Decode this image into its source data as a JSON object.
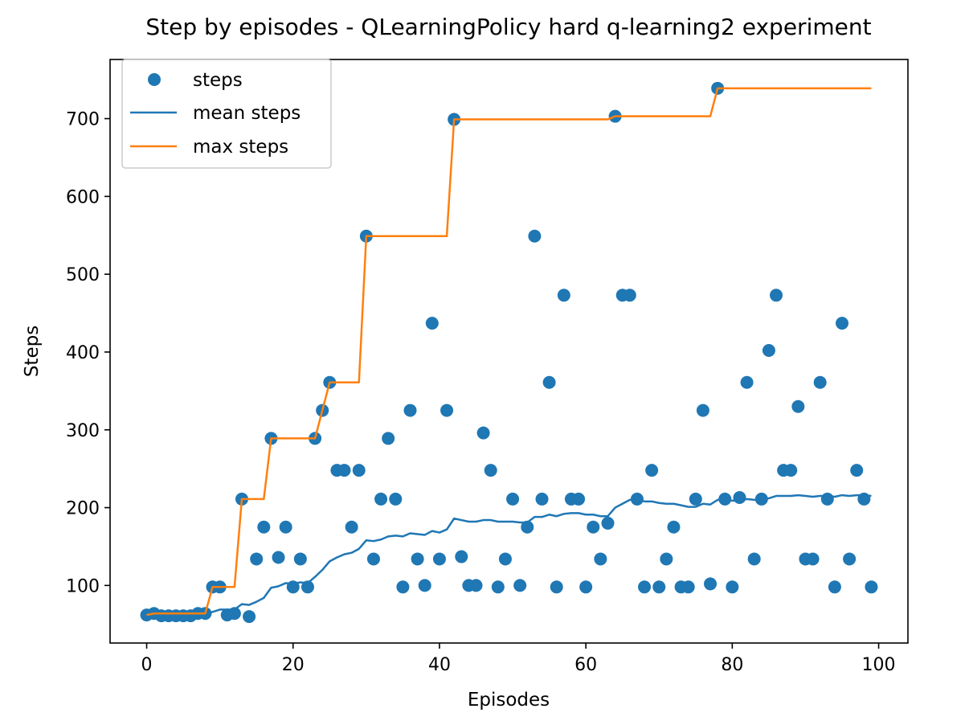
{
  "chart_data": {
    "type": "scatter",
    "title": "Step by episodes - QLearningPolicy hard q-learning2 experiment",
    "xlabel": "Episodes",
    "ylabel": "Steps",
    "xlim": [
      -5,
      104
    ],
    "ylim": [
      26,
      776
    ],
    "xticks": [
      0,
      20,
      40,
      60,
      80,
      100
    ],
    "yticks": [
      100,
      200,
      300,
      400,
      500,
      600,
      700
    ],
    "legend_position": "upper left",
    "colors": {
      "steps": "#1f77b4",
      "mean": "#1f77b4",
      "max": "#ff7f0e"
    },
    "legend": [
      "steps",
      "mean steps",
      "max steps"
    ],
    "series": [
      {
        "name": "steps",
        "kind": "scatter",
        "x": [
          0,
          1,
          2,
          3,
          4,
          5,
          6,
          7,
          8,
          9,
          10,
          11,
          12,
          13,
          14,
          15,
          16,
          17,
          18,
          19,
          20,
          21,
          22,
          23,
          24,
          25,
          26,
          27,
          28,
          29,
          30,
          31,
          32,
          33,
          34,
          35,
          36,
          37,
          38,
          39,
          40,
          41,
          42,
          43,
          44,
          45,
          46,
          47,
          48,
          49,
          50,
          51,
          52,
          53,
          54,
          55,
          56,
          57,
          58,
          59,
          60,
          61,
          62,
          63,
          64,
          65,
          66,
          67,
          68,
          69,
          70,
          71,
          72,
          73,
          74,
          75,
          76,
          77,
          78,
          79,
          80,
          81,
          82,
          83,
          84,
          85,
          86,
          87,
          88,
          89,
          90,
          91,
          92,
          93,
          94,
          95,
          96,
          97,
          98,
          99
        ],
        "y": [
          62,
          64,
          61,
          61,
          61,
          61,
          61,
          64,
          64,
          98,
          98,
          62,
          64,
          211,
          60,
          134,
          175,
          289,
          136,
          175,
          98,
          134,
          98,
          289,
          325,
          361,
          248,
          248,
          175,
          248,
          549,
          134,
          211,
          289,
          211,
          98,
          325,
          134,
          100,
          437,
          134,
          325,
          699,
          137,
          100,
          100,
          296,
          248,
          98,
          134,
          211,
          100,
          175,
          549,
          211,
          361,
          98,
          473,
          211,
          211,
          98,
          175,
          134,
          180,
          703,
          473,
          473,
          211,
          98,
          248,
          98,
          134,
          175,
          98,
          98,
          211,
          325,
          102,
          739,
          211,
          98,
          213,
          361,
          134,
          211,
          402,
          473,
          248,
          248,
          330,
          134,
          134,
          361,
          211,
          98,
          437,
          134,
          248,
          211,
          98
        ]
      },
      {
        "name": "mean steps",
        "kind": "line",
        "x": [
          0,
          1,
          2,
          3,
          4,
          5,
          6,
          7,
          8,
          9,
          10,
          11,
          12,
          13,
          14,
          15,
          16,
          17,
          18,
          19,
          20,
          21,
          22,
          23,
          24,
          25,
          26,
          27,
          28,
          29,
          30,
          31,
          32,
          33,
          34,
          35,
          36,
          37,
          38,
          39,
          40,
          41,
          42,
          43,
          44,
          45,
          46,
          47,
          48,
          49,
          50,
          51,
          52,
          53,
          54,
          55,
          56,
          57,
          58,
          59,
          60,
          61,
          62,
          63,
          64,
          65,
          66,
          67,
          68,
          69,
          70,
          71,
          72,
          73,
          74,
          75,
          76,
          77,
          78,
          79,
          80,
          81,
          82,
          83,
          84,
          85,
          86,
          87,
          88,
          89,
          90,
          91,
          92,
          93,
          94,
          95,
          96,
          97,
          98,
          99
        ],
        "y": [
          62,
          63,
          62,
          62,
          62,
          62,
          62,
          62,
          62,
          66,
          69,
          69,
          69,
          76,
          75,
          79,
          84,
          97,
          99,
          103,
          102,
          104,
          103,
          111,
          120,
          131,
          136,
          140,
          142,
          147,
          158,
          157,
          159,
          163,
          164,
          163,
          167,
          166,
          165,
          170,
          168,
          172,
          186,
          184,
          182,
          182,
          184,
          184,
          182,
          182,
          182,
          181,
          181,
          188,
          188,
          191,
          189,
          192,
          193,
          193,
          191,
          191,
          189,
          189,
          200,
          205,
          210,
          210,
          208,
          208,
          206,
          205,
          205,
          203,
          201,
          201,
          205,
          204,
          210,
          210,
          209,
          209,
          211,
          210,
          210,
          212,
          215,
          215,
          215,
          216,
          215,
          214,
          215,
          215,
          214,
          216,
          215,
          216,
          216,
          215
        ]
      },
      {
        "name": "max steps",
        "kind": "line",
        "x": [
          0,
          1,
          2,
          3,
          4,
          5,
          6,
          7,
          8,
          9,
          10,
          11,
          12,
          13,
          14,
          15,
          16,
          17,
          18,
          19,
          20,
          21,
          22,
          23,
          24,
          25,
          26,
          27,
          28,
          29,
          30,
          31,
          32,
          33,
          34,
          35,
          36,
          37,
          38,
          39,
          40,
          41,
          42,
          43,
          44,
          45,
          46,
          47,
          48,
          49,
          50,
          51,
          52,
          53,
          54,
          55,
          56,
          57,
          58,
          59,
          60,
          61,
          62,
          63,
          64,
          65,
          66,
          67,
          68,
          69,
          70,
          71,
          72,
          73,
          74,
          75,
          76,
          77,
          78,
          79,
          80,
          81,
          82,
          83,
          84,
          85,
          86,
          87,
          88,
          89,
          90,
          91,
          92,
          93,
          94,
          95,
          96,
          97,
          98,
          99
        ],
        "y": [
          62,
          64,
          64,
          64,
          64,
          64,
          64,
          64,
          64,
          98,
          98,
          98,
          98,
          211,
          211,
          211,
          211,
          289,
          289,
          289,
          289,
          289,
          289,
          289,
          325,
          361,
          361,
          361,
          361,
          361,
          549,
          549,
          549,
          549,
          549,
          549,
          549,
          549,
          549,
          549,
          549,
          549,
          699,
          699,
          699,
          699,
          699,
          699,
          699,
          699,
          699,
          699,
          699,
          699,
          699,
          699,
          699,
          699,
          699,
          699,
          699,
          699,
          699,
          699,
          703,
          703,
          703,
          703,
          703,
          703,
          703,
          703,
          703,
          703,
          703,
          703,
          703,
          703,
          739,
          739,
          739,
          739,
          739,
          739,
          739,
          739,
          739,
          739,
          739,
          739,
          739,
          739,
          739,
          739,
          739,
          739,
          739,
          739,
          739,
          739
        ]
      }
    ]
  }
}
